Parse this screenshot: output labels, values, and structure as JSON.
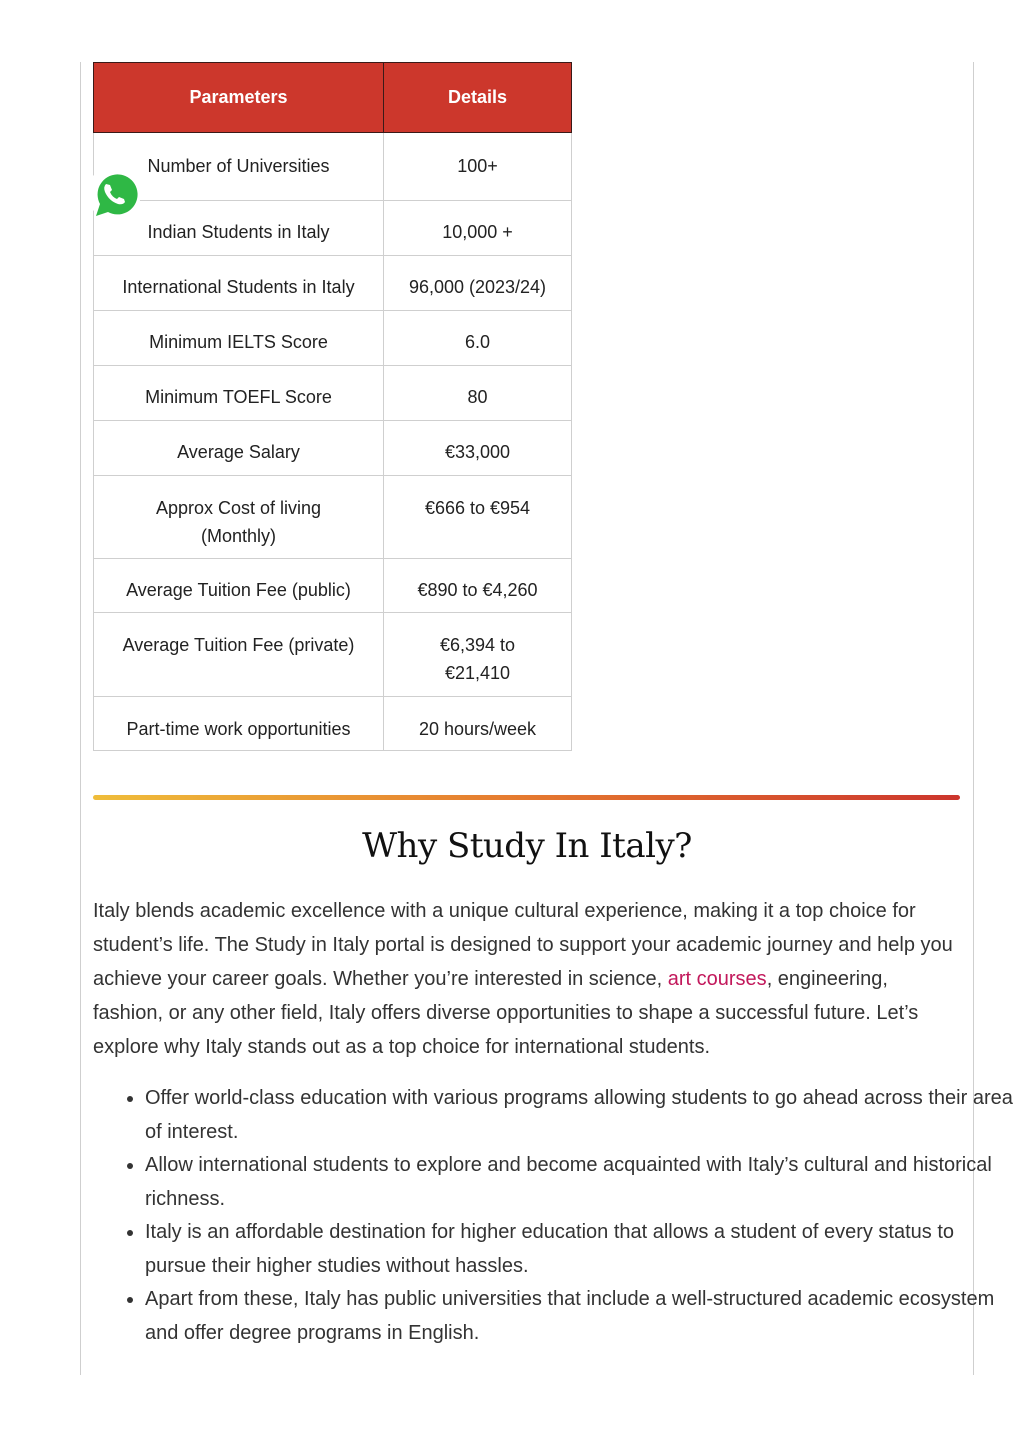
{
  "table": {
    "headers": [
      "Parameters",
      "Details"
    ],
    "rows": [
      [
        "Number of Universities",
        "100+"
      ],
      [
        "Indian Students in Italy",
        "10,000 +"
      ],
      [
        "International Students in Italy",
        "96,000 (2023/24)"
      ],
      [
        "Minimum IELTS Score",
        "6.0"
      ],
      [
        "Minimum TOEFL Score",
        "80"
      ],
      [
        "Average Salary",
        "€33,000"
      ],
      [
        "Approx Cost of living (Monthly)",
        "€666 to €954"
      ],
      [
        "Average Tuition Fee (public)",
        "€890 to €4,260"
      ],
      [
        "Average Tuition Fee (private)",
        "€6,394 to €21,410"
      ],
      [
        "Part-time work opportunities",
        "20 hours/week"
      ]
    ]
  },
  "section": {
    "title": "Why Study In Italy?",
    "intro_before_link": "Italy blends academic excellence with a unique cultural experience, making it a top choice for student’s life. The Study in Italy portal is designed to support your academic journey and help you achieve your career goals. Whether you’re interested in science, ",
    "link_text": "art courses",
    "intro_after_link": ", engineering, fashion, or any other field, Italy offers diverse opportunities to shape a successful future. Let’s explore why Italy stands out as a top choice for international students.",
    "bullets": [
      "Offer world-class education with various programs allowing students to go ahead across their area of interest.",
      "Allow international students to explore and become acquainted with Italy’s cultural and historical richness.",
      "Italy is an affordable destination for higher education that allows a student of every status to pursue their higher studies without hassles.",
      "Apart from these, Italy has public universities that include a well-structured academic ecosystem and offer degree programs in English."
    ]
  },
  "colors": {
    "header": "#cc372c",
    "link": "#c2185b",
    "whatsapp": "#2fb845"
  }
}
